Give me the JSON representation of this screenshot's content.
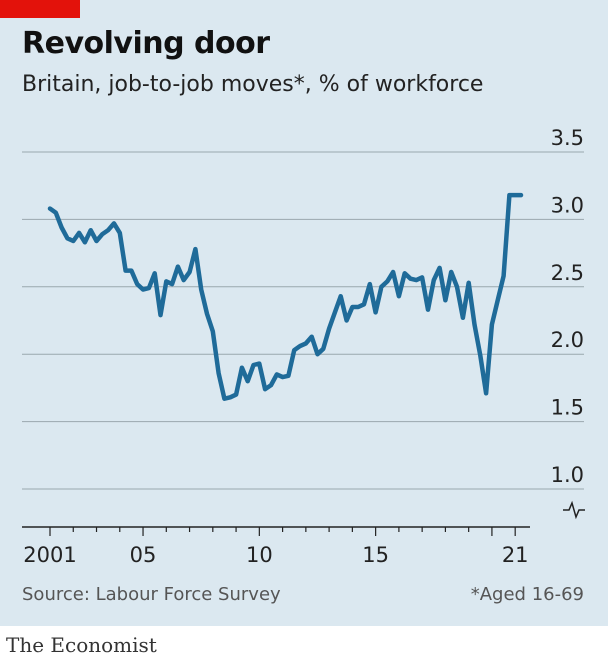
{
  "header": {
    "title": "Revolving door",
    "subtitle": "Britain, job-to-job moves*, % of workforce"
  },
  "footer": {
    "source": "Source: Labour Force Survey",
    "footnote": "*Aged 16-69",
    "brand": "The Economist"
  },
  "colors": {
    "line": "#1f6b99",
    "panel": "#dbe8f0",
    "accent": "#e3120b",
    "grid": "#9aa7ae"
  },
  "chart_data": {
    "type": "line",
    "title": "Revolving door",
    "subtitle": "Britain, job-to-job moves*, % of workforce",
    "xlabel": "",
    "ylabel": "",
    "ylim": [
      1.0,
      3.5
    ],
    "yticks": [
      "3.5",
      "3.0",
      "2.5",
      "2.0",
      "1.5",
      "1.0"
    ],
    "y_axis_break": true,
    "xtick_labels": [
      {
        "label": "2001",
        "year": 2001
      },
      {
        "label": "05",
        "year": 2005
      },
      {
        "label": "10",
        "year": 2010
      },
      {
        "label": "15",
        "year": 2015
      },
      {
        "label": "21",
        "year": 2021
      }
    ],
    "grid": true,
    "series": [
      {
        "name": "",
        "x": [
          2001.0,
          2001.25,
          2001.5,
          2001.75,
          2002.0,
          2002.25,
          2002.5,
          2002.75,
          2003.0,
          2003.25,
          2003.5,
          2003.75,
          2004.0,
          2004.25,
          2004.5,
          2004.75,
          2005.0,
          2005.25,
          2005.5,
          2005.75,
          2006.0,
          2006.25,
          2006.5,
          2006.75,
          2007.0,
          2007.25,
          2007.5,
          2007.75,
          2008.0,
          2008.25,
          2008.5,
          2008.75,
          2009.0,
          2009.25,
          2009.5,
          2009.75,
          2010.0,
          2010.25,
          2010.5,
          2010.75,
          2011.0,
          2011.25,
          2011.5,
          2011.75,
          2012.0,
          2012.25,
          2012.5,
          2012.75,
          2013.0,
          2013.25,
          2013.5,
          2013.75,
          2014.0,
          2014.25,
          2014.5,
          2014.75,
          2015.0,
          2015.25,
          2015.5,
          2015.75,
          2016.0,
          2016.25,
          2016.5,
          2016.75,
          2017.0,
          2017.25,
          2017.5,
          2017.75,
          2018.0,
          2018.25,
          2018.5,
          2018.75,
          2019.0,
          2019.25,
          2019.5,
          2019.75,
          2020.0,
          2020.25,
          2020.5,
          2020.75,
          2021.0,
          2021.25
        ],
        "y": [
          3.08,
          3.05,
          2.94,
          2.86,
          2.84,
          2.9,
          2.83,
          2.92,
          2.84,
          2.89,
          2.92,
          2.97,
          2.9,
          2.62,
          2.62,
          2.52,
          2.48,
          2.49,
          2.6,
          2.29,
          2.54,
          2.52,
          2.65,
          2.55,
          2.61,
          2.78,
          2.48,
          2.3,
          2.17,
          1.86,
          1.67,
          1.68,
          1.7,
          1.9,
          1.8,
          1.92,
          1.93,
          1.74,
          1.77,
          1.85,
          1.83,
          1.84,
          2.03,
          2.06,
          2.08,
          2.13,
          2.0,
          2.04,
          2.19,
          2.31,
          2.43,
          2.25,
          2.35,
          2.35,
          2.37,
          2.52,
          2.31,
          2.5,
          2.54,
          2.61,
          2.43,
          2.6,
          2.56,
          2.55,
          2.57,
          2.33,
          2.55,
          2.64,
          2.4,
          2.61,
          2.5,
          2.27,
          2.53,
          2.22,
          1.99,
          1.71,
          2.22,
          2.4,
          2.58,
          3.18,
          3.18,
          3.18
        ]
      }
    ]
  }
}
